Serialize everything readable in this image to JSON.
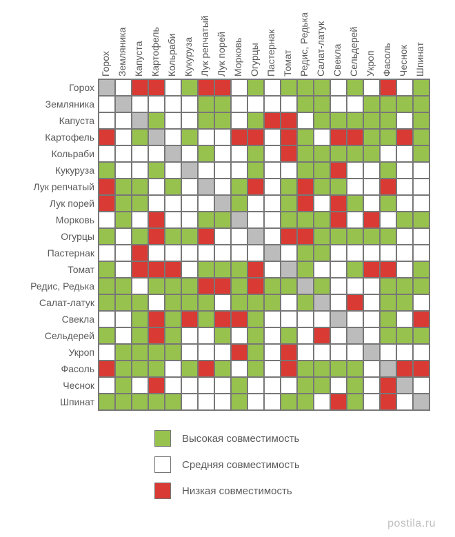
{
  "chart": {
    "type": "heatmap",
    "cell_size": 24,
    "font_size_labels": 14,
    "border_color": "#777777",
    "background_color": "#ffffff",
    "labels": [
      "Горох",
      "Земляника",
      "Капуста",
      "Картофель",
      "Кольраби",
      "Кукуруза",
      "Лук репчатый",
      "Лук порей",
      "Морковь",
      "Огурцы",
      "Пастернак",
      "Томат",
      "Редис, Редька",
      "Салат-латук",
      "Свекла",
      "Сельдерей",
      "Укроп",
      "Фасоль",
      "Чеснок",
      "Шпинат"
    ],
    "colors": {
      "H": "#97c24d",
      "M": "#ffffff",
      "L": "#d93a34",
      "D": "#bcbcbc"
    },
    "matrix": [
      [
        "D",
        "M",
        "L",
        "L",
        "M",
        "H",
        "L",
        "L",
        "M",
        "H",
        "M",
        "H",
        "H",
        "H",
        "M",
        "H",
        "M",
        "L",
        "M",
        "H"
      ],
      [
        "M",
        "D",
        "M",
        "M",
        "M",
        "M",
        "H",
        "H",
        "M",
        "M",
        "M",
        "M",
        "H",
        "H",
        "M",
        "M",
        "H",
        "H",
        "H",
        "H"
      ],
      [
        "M",
        "M",
        "D",
        "H",
        "M",
        "M",
        "H",
        "H",
        "M",
        "H",
        "L",
        "L",
        "M",
        "H",
        "H",
        "H",
        "H",
        "H",
        "M",
        "H"
      ],
      [
        "L",
        "M",
        "H",
        "D",
        "M",
        "H",
        "M",
        "M",
        "L",
        "L",
        "M",
        "L",
        "H",
        "M",
        "L",
        "L",
        "H",
        "H",
        "L",
        "H"
      ],
      [
        "M",
        "M",
        "M",
        "M",
        "D",
        "M",
        "H",
        "M",
        "M",
        "H",
        "M",
        "L",
        "H",
        "H",
        "H",
        "H",
        "H",
        "M",
        "M",
        "H"
      ],
      [
        "H",
        "M",
        "M",
        "H",
        "M",
        "D",
        "M",
        "M",
        "M",
        "H",
        "M",
        "M",
        "H",
        "H",
        "L",
        "M",
        "M",
        "H",
        "M",
        "M"
      ],
      [
        "L",
        "H",
        "H",
        "M",
        "H",
        "M",
        "D",
        "M",
        "H",
        "L",
        "M",
        "H",
        "L",
        "H",
        "H",
        "M",
        "M",
        "L",
        "M",
        "M"
      ],
      [
        "L",
        "H",
        "H",
        "M",
        "M",
        "M",
        "M",
        "D",
        "H",
        "M",
        "M",
        "H",
        "L",
        "M",
        "L",
        "H",
        "M",
        "H",
        "M",
        "M"
      ],
      [
        "M",
        "H",
        "M",
        "L",
        "M",
        "M",
        "H",
        "H",
        "D",
        "M",
        "M",
        "H",
        "H",
        "H",
        "L",
        "M",
        "L",
        "M",
        "H",
        "H"
      ],
      [
        "H",
        "M",
        "H",
        "L",
        "H",
        "H",
        "L",
        "M",
        "M",
        "D",
        "M",
        "L",
        "L",
        "H",
        "H",
        "H",
        "H",
        "H",
        "M",
        "M"
      ],
      [
        "M",
        "M",
        "L",
        "M",
        "M",
        "M",
        "M",
        "M",
        "M",
        "M",
        "D",
        "M",
        "H",
        "H",
        "M",
        "M",
        "M",
        "M",
        "M",
        "M"
      ],
      [
        "H",
        "M",
        "L",
        "L",
        "L",
        "M",
        "H",
        "H",
        "H",
        "L",
        "M",
        "D",
        "H",
        "M",
        "M",
        "H",
        "L",
        "L",
        "M",
        "H"
      ],
      [
        "H",
        "H",
        "M",
        "H",
        "H",
        "H",
        "L",
        "L",
        "H",
        "L",
        "H",
        "H",
        "D",
        "H",
        "M",
        "M",
        "M",
        "H",
        "H",
        "H"
      ],
      [
        "H",
        "H",
        "H",
        "M",
        "H",
        "H",
        "H",
        "M",
        "H",
        "H",
        "H",
        "M",
        "H",
        "D",
        "M",
        "L",
        "M",
        "H",
        "H",
        "M"
      ],
      [
        "M",
        "M",
        "H",
        "L",
        "H",
        "L",
        "H",
        "L",
        "L",
        "H",
        "M",
        "M",
        "M",
        "M",
        "D",
        "M",
        "M",
        "H",
        "M",
        "L"
      ],
      [
        "H",
        "M",
        "H",
        "L",
        "H",
        "M",
        "M",
        "H",
        "M",
        "H",
        "M",
        "H",
        "M",
        "L",
        "M",
        "D",
        "M",
        "H",
        "H",
        "H"
      ],
      [
        "M",
        "H",
        "H",
        "H",
        "H",
        "M",
        "M",
        "M",
        "L",
        "H",
        "M",
        "L",
        "M",
        "M",
        "M",
        "M",
        "D",
        "M",
        "M",
        "M"
      ],
      [
        "L",
        "H",
        "H",
        "H",
        "M",
        "H",
        "L",
        "H",
        "M",
        "H",
        "M",
        "L",
        "H",
        "H",
        "H",
        "H",
        "M",
        "D",
        "L",
        "L"
      ],
      [
        "M",
        "H",
        "M",
        "L",
        "M",
        "M",
        "M",
        "M",
        "H",
        "M",
        "M",
        "M",
        "H",
        "H",
        "M",
        "H",
        "M",
        "L",
        "D",
        "M"
      ],
      [
        "H",
        "H",
        "H",
        "H",
        "H",
        "M",
        "M",
        "M",
        "H",
        "M",
        "M",
        "H",
        "H",
        "M",
        "L",
        "H",
        "M",
        "L",
        "M",
        "D"
      ]
    ]
  },
  "legend": {
    "items": [
      {
        "key": "H",
        "label": "Высокая совместимость"
      },
      {
        "key": "M",
        "label": "Средняя совместимость"
      },
      {
        "key": "L",
        "label": "Низкая совместимость"
      }
    ]
  },
  "watermark": "postila.ru"
}
